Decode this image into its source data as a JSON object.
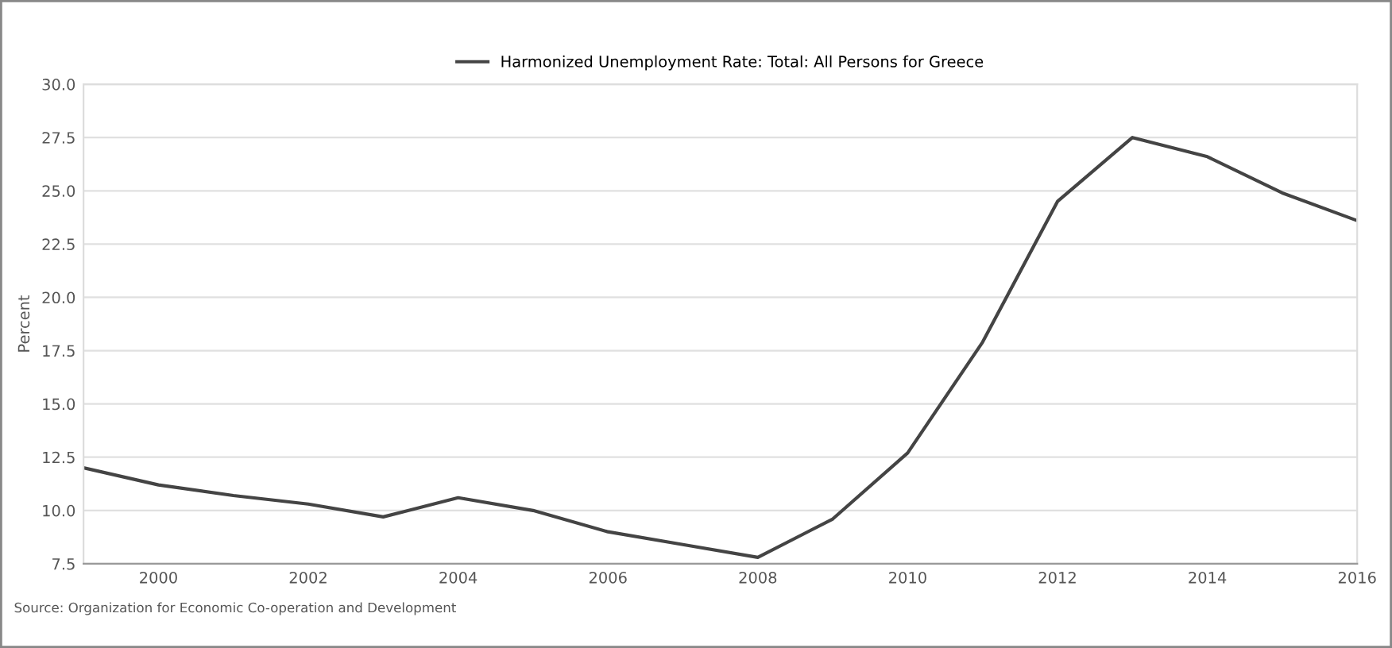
{
  "chart_data": {
    "type": "line",
    "ylabel": "Percent",
    "x": [
      1999,
      2000,
      2001,
      2002,
      2003,
      2004,
      2005,
      2006,
      2007,
      2008,
      2009,
      2010,
      2011,
      2012,
      2013,
      2014,
      2015,
      2016
    ],
    "series": [
      {
        "name": "Harmonized Unemployment Rate: Total: All Persons for Greece",
        "color": "#444444",
        "values": [
          12.0,
          11.2,
          10.7,
          10.3,
          9.7,
          10.6,
          10.0,
          9.0,
          8.4,
          7.8,
          9.6,
          12.7,
          17.9,
          24.5,
          27.5,
          26.6,
          24.9,
          23.6
        ]
      }
    ],
    "xlim": [
      1999,
      2016
    ],
    "xticks": [
      2000,
      2002,
      2004,
      2006,
      2008,
      2010,
      2012,
      2014,
      2016
    ],
    "ylim": [
      7.5,
      30
    ],
    "yticks": [
      {
        "value": 7.5,
        "label": "7.5"
      },
      {
        "value": 10,
        "label": "10.0"
      },
      {
        "value": 12.5,
        "label": "12.5"
      },
      {
        "value": 15,
        "label": "15.0"
      },
      {
        "value": 17.5,
        "label": "17.5"
      },
      {
        "value": 20,
        "label": "20.0"
      },
      {
        "value": 22.5,
        "label": "22.5"
      },
      {
        "value": 25,
        "label": "25.0"
      },
      {
        "value": 27.5,
        "label": "27.5"
      },
      {
        "value": 30,
        "label": "30.0"
      }
    ],
    "grid": "y",
    "legend": "top",
    "marker": "none",
    "line_style": "solid",
    "annotations": [
      "Source: Organization for Economic Co-operation and Development"
    ]
  }
}
